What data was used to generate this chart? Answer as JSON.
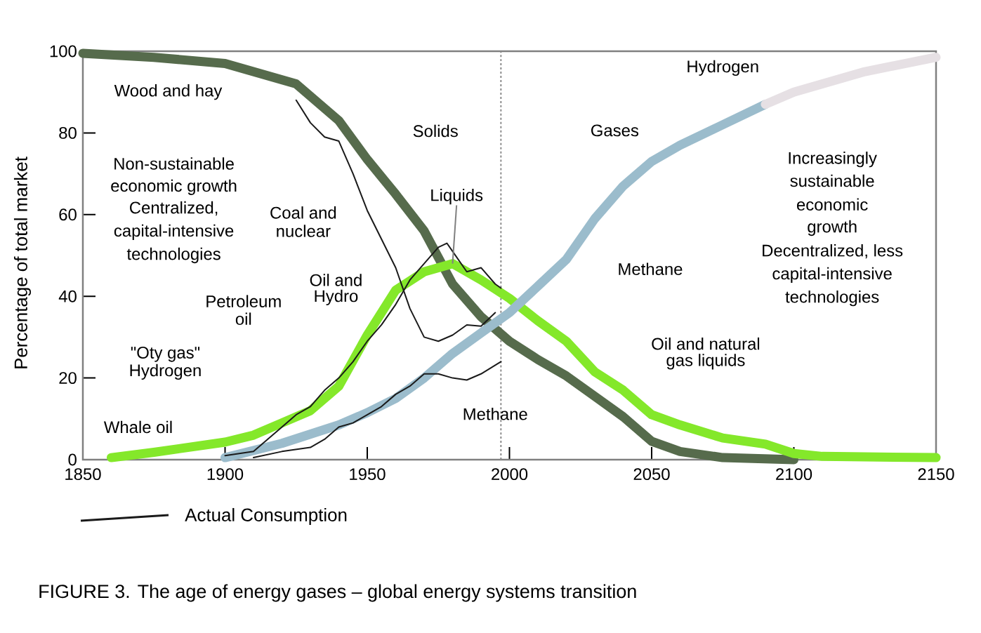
{
  "chart_data": {
    "type": "line",
    "title": "FIGURE 3. The age of energy gases – global energy systems transition",
    "ylabel": "Percentage of total market",
    "xlim": [
      1850,
      2150
    ],
    "xticks": [
      1850,
      1900,
      1950,
      2000,
      2050,
      2100,
      2150
    ],
    "ylim": [
      0,
      100
    ],
    "yticks": [
      0,
      20,
      40,
      60,
      80,
      100
    ],
    "grid": false,
    "legend": "bottom left",
    "marker": "none",
    "series": [
      {
        "name": "Solids",
        "color": "#566b4c",
        "x": [
          1850,
          1875,
          1900,
          1925,
          1940,
          1950,
          1960,
          1970,
          1980,
          1990,
          2000,
          2010,
          2020,
          2030,
          2040,
          2045,
          2050,
          2060,
          2075,
          2100
        ],
        "values": [
          99.5,
          98.5,
          97,
          92,
          83,
          73.5,
          65,
          56,
          43,
          35,
          29,
          24.5,
          20.5,
          15.5,
          10.5,
          7.5,
          4.5,
          2,
          0.5,
          0
        ]
      },
      {
        "name": "Liquids",
        "color": "#84e82a",
        "x": [
          1860,
          1875,
          1900,
          1910,
          1920,
          1930,
          1940,
          1950,
          1960,
          1970,
          1980,
          1990,
          2000,
          2010,
          2020,
          2030,
          2040,
          2050,
          2060,
          2075,
          2090,
          2100,
          2110,
          2150
        ],
        "values": [
          0.5,
          1.8,
          4.3,
          6,
          9,
          12,
          18,
          30.5,
          41.5,
          46,
          48,
          44,
          39.5,
          34,
          29,
          21.5,
          17,
          11,
          8.5,
          5.3,
          3.8,
          1.5,
          0.8,
          0.5
        ]
      },
      {
        "name": "Gases",
        "color": "#9bbccc",
        "x": [
          1900,
          1920,
          1940,
          1950,
          1960,
          1970,
          1980,
          1990,
          2000,
          2010,
          2020,
          2030,
          2040,
          2050,
          2060,
          2075,
          2090
        ],
        "values": [
          0.5,
          4,
          8.5,
          11.5,
          15,
          20,
          26,
          31,
          36,
          42.5,
          49,
          59,
          67,
          73,
          77,
          82,
          87
        ]
      },
      {
        "name": "Hydrogen",
        "color": "#e6e0e4",
        "x": [
          2090,
          2100,
          2125,
          2150
        ],
        "values": [
          87,
          90,
          95,
          98.5
        ]
      },
      {
        "name": "Actual Consumption",
        "color": "#1a1a1a",
        "x": [
          1925,
          1930,
          1935,
          1940,
          1945,
          1950,
          1955,
          1960,
          1965,
          1970,
          1975,
          1980,
          1985,
          1990,
          1995
        ],
        "values": [
          88,
          82.5,
          79,
          78,
          70,
          61,
          54,
          47,
          37,
          30,
          29,
          30.5,
          33,
          32.7,
          36
        ]
      },
      {
        "color": "#1a1a1a",
        "x": [
          1900,
          1910,
          1920,
          1925,
          1930,
          1935,
          1940,
          1945,
          1950,
          1955,
          1960,
          1965,
          1970,
          1975,
          1978,
          1980,
          1985,
          1990,
          1995,
          1997
        ],
        "values": [
          1,
          2,
          8,
          11,
          13,
          17,
          20,
          24,
          29,
          33,
          38,
          44,
          48,
          52,
          53,
          51,
          46,
          47,
          43,
          42
        ]
      },
      {
        "color": "#1a1a1a",
        "x": [
          1910,
          1920,
          1930,
          1935,
          1940,
          1945,
          1950,
          1955,
          1960,
          1965,
          1970,
          1975,
          1980,
          1985,
          1990,
          1997
        ],
        "values": [
          0.5,
          2,
          3,
          5,
          8,
          9,
          11,
          13,
          16,
          18,
          21,
          21,
          20,
          19.5,
          21,
          24
        ]
      }
    ],
    "ref_lines": [
      {
        "axis": "x",
        "value": 1997,
        "color": "#8c8c8c",
        "line_style": "dashed"
      }
    ],
    "annotations": [
      "Wood and hay",
      "Coal and",
      "nuclear",
      "Oil and",
      "Hydro",
      "Petroleum",
      "oil",
      "\"Oty gas\"",
      "Hydrogen",
      "Whale oil",
      "Methane",
      "Methane",
      "Oil and natural",
      "gas liquids",
      "Non-sustainable",
      "economic growth",
      "Centralized,",
      "capital-intensive",
      "technologies",
      "Increasingly",
      "sustainable",
      "economic",
      "growth",
      "Decentralized, less",
      "capital-intensive",
      "technologies"
    ]
  }
}
